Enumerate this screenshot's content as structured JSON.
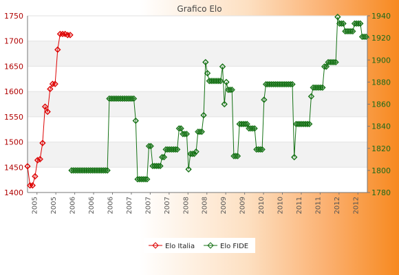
{
  "chart_data": {
    "type": "line",
    "title": "Grafico Elo",
    "xlabel": "",
    "ylabel_left": "",
    "ylabel_right": "",
    "ylim_left": [
      1400,
      1750
    ],
    "ylim_right": [
      1780,
      1940
    ],
    "yticks_left": [
      1400,
      1450,
      1500,
      1550,
      1600,
      1650,
      1700,
      1750
    ],
    "yticks_right": [
      1780,
      1800,
      1820,
      1840,
      1860,
      1880,
      1900,
      1920,
      1940
    ],
    "x_tick_labels": [
      "2005",
      "2005",
      "2006",
      "2006",
      "2006",
      "2007",
      "2007",
      "2007",
      "2008",
      "2008",
      "2009",
      "2009",
      "2010",
      "2010",
      "2011",
      "2011",
      "2012",
      "2012"
    ],
    "grid": "horizontal",
    "legend_position": "bottom",
    "legend": [
      "Elo Italia",
      "Elo FIDE"
    ],
    "colors": {
      "elo_italia": "#dd0000",
      "elo_fide": "#137013",
      "band": "#f2f2f2",
      "plot_bg": "#ffffff"
    },
    "series": [
      {
        "name": "Elo Italia",
        "axis": "left",
        "values": [
          1452,
          1414,
          1414,
          1432,
          1464,
          1466,
          1498,
          1570,
          1560,
          1605,
          1615,
          1615,
          1683,
          1714,
          1714,
          1714,
          1712,
          1712
        ]
      },
      {
        "name": "Elo FIDE",
        "axis": "right",
        "values": [
          1800,
          1800,
          1800,
          1800,
          1800,
          1800,
          1800,
          1800,
          1800,
          1800,
          1800,
          1800,
          1800,
          1800,
          1800,
          1800,
          1800,
          1800,
          1800,
          1800,
          1865,
          1865,
          1865,
          1865,
          1865,
          1865,
          1865,
          1865,
          1865,
          1865,
          1865,
          1865,
          1865,
          1865,
          1845,
          1792,
          1792,
          1792,
          1792,
          1792,
          1792,
          1822,
          1822,
          1804,
          1804,
          1804,
          1804,
          1804,
          1812,
          1812,
          1819,
          1819,
          1819,
          1819,
          1819,
          1819,
          1819,
          1838,
          1838,
          1833,
          1833,
          1833,
          1801,
          1815,
          1815,
          1815,
          1817,
          1835,
          1835,
          1835,
          1850,
          1898,
          1888,
          1881,
          1881,
          1881,
          1881,
          1881,
          1881,
          1881,
          1894,
          1860,
          1880,
          1873,
          1873,
          1873,
          1813,
          1813,
          1813,
          1842,
          1842,
          1842,
          1842,
          1842,
          1838,
          1838,
          1838,
          1838,
          1819,
          1819,
          1819,
          1819,
          1864,
          1878,
          1878,
          1878,
          1878,
          1878,
          1878,
          1878,
          1878,
          1878,
          1878,
          1878,
          1878,
          1878,
          1878,
          1878,
          1812,
          1842,
          1842,
          1842,
          1842,
          1842,
          1842,
          1842,
          1842,
          1867,
          1875,
          1875,
          1875,
          1875,
          1875,
          1875,
          1894,
          1894,
          1898,
          1898,
          1898,
          1898,
          1898,
          1939,
          1933,
          1933,
          1933,
          1926,
          1926,
          1926,
          1926,
          1926,
          1933,
          1933,
          1933,
          1933,
          1921,
          1921,
          1921
        ]
      }
    ]
  }
}
